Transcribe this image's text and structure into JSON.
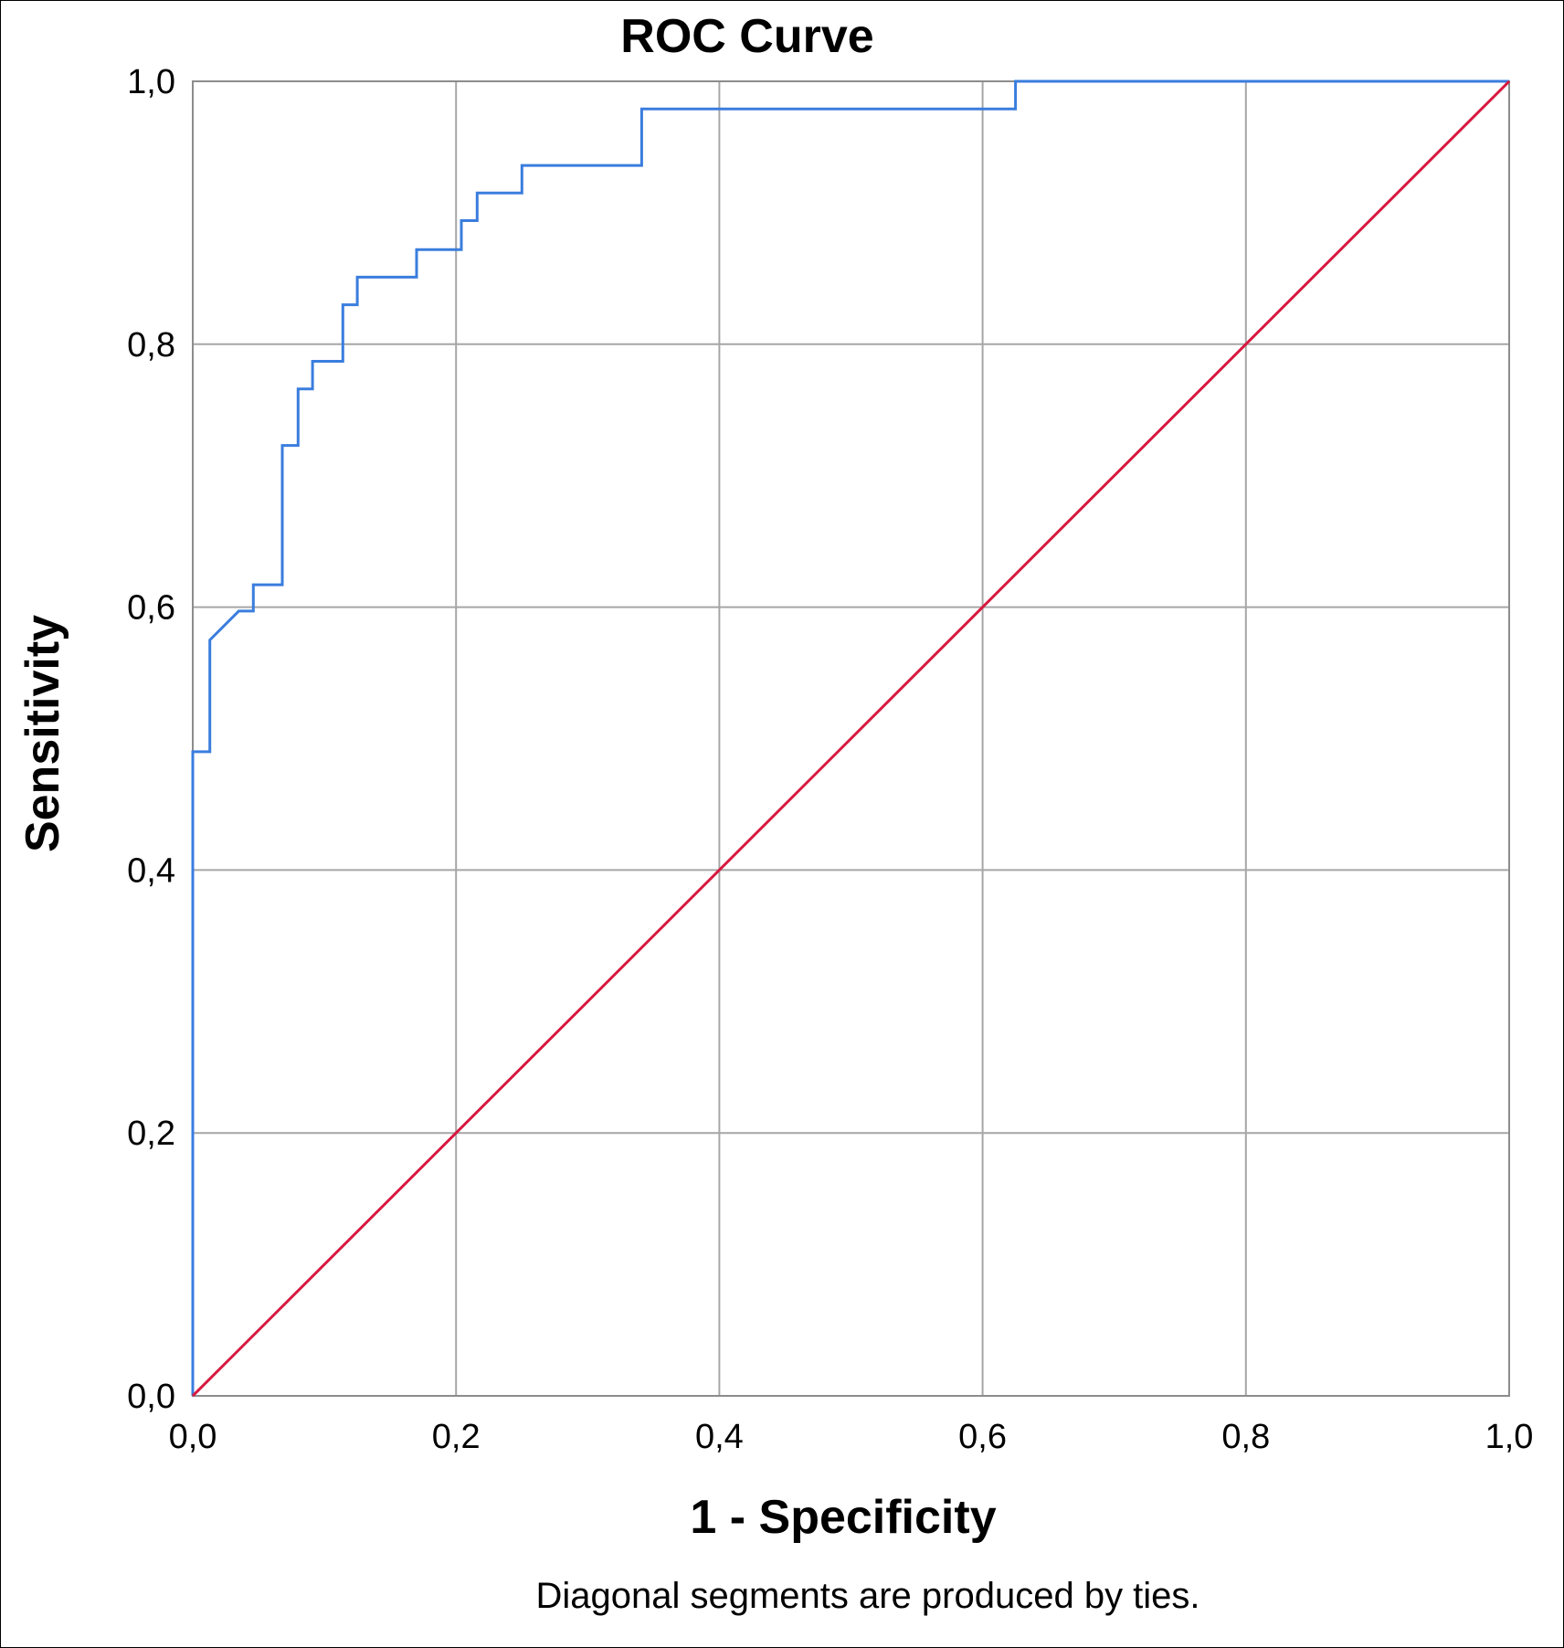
{
  "chart_data": {
    "type": "line",
    "title": "ROC Curve",
    "xlabel": "1 - Specificity",
    "ylabel": "Sensitivity",
    "footnote": "Diagonal segments are produced by ties.",
    "xlim": [
      0,
      1
    ],
    "ylim": [
      0,
      1
    ],
    "x_ticks": [
      "0,0",
      "0,2",
      "0,4",
      "0,6",
      "0,8",
      "1,0"
    ],
    "y_ticks": [
      "0,0",
      "0,2",
      "0,4",
      "0,6",
      "0,8",
      "1,0"
    ],
    "grid": true,
    "colors": {
      "roc": "#3a7dde",
      "reference": "#d7193f"
    },
    "series": [
      {
        "points": [
          [
            0.0,
            0.0
          ],
          [
            0.0,
            0.49
          ],
          [
            0.013,
            0.49
          ],
          [
            0.013,
            0.575
          ],
          [
            0.035,
            0.597
          ],
          [
            0.046,
            0.597
          ],
          [
            0.046,
            0.617
          ],
          [
            0.068,
            0.617
          ],
          [
            0.068,
            0.723
          ],
          [
            0.08,
            0.723
          ],
          [
            0.08,
            0.766
          ],
          [
            0.091,
            0.766
          ],
          [
            0.091,
            0.787
          ],
          [
            0.114,
            0.787
          ],
          [
            0.114,
            0.83
          ],
          [
            0.125,
            0.83
          ],
          [
            0.125,
            0.851
          ],
          [
            0.17,
            0.851
          ],
          [
            0.17,
            0.872
          ],
          [
            0.204,
            0.872
          ],
          [
            0.204,
            0.894
          ],
          [
            0.216,
            0.894
          ],
          [
            0.216,
            0.915
          ],
          [
            0.25,
            0.915
          ],
          [
            0.25,
            0.936
          ],
          [
            0.341,
            0.936
          ],
          [
            0.341,
            0.979
          ],
          [
            0.625,
            0.979
          ],
          [
            0.625,
            1.0
          ],
          [
            1.0,
            1.0
          ]
        ]
      },
      {
        "points": [
          [
            0.0,
            0.0
          ],
          [
            1.0,
            1.0
          ]
        ]
      }
    ]
  }
}
